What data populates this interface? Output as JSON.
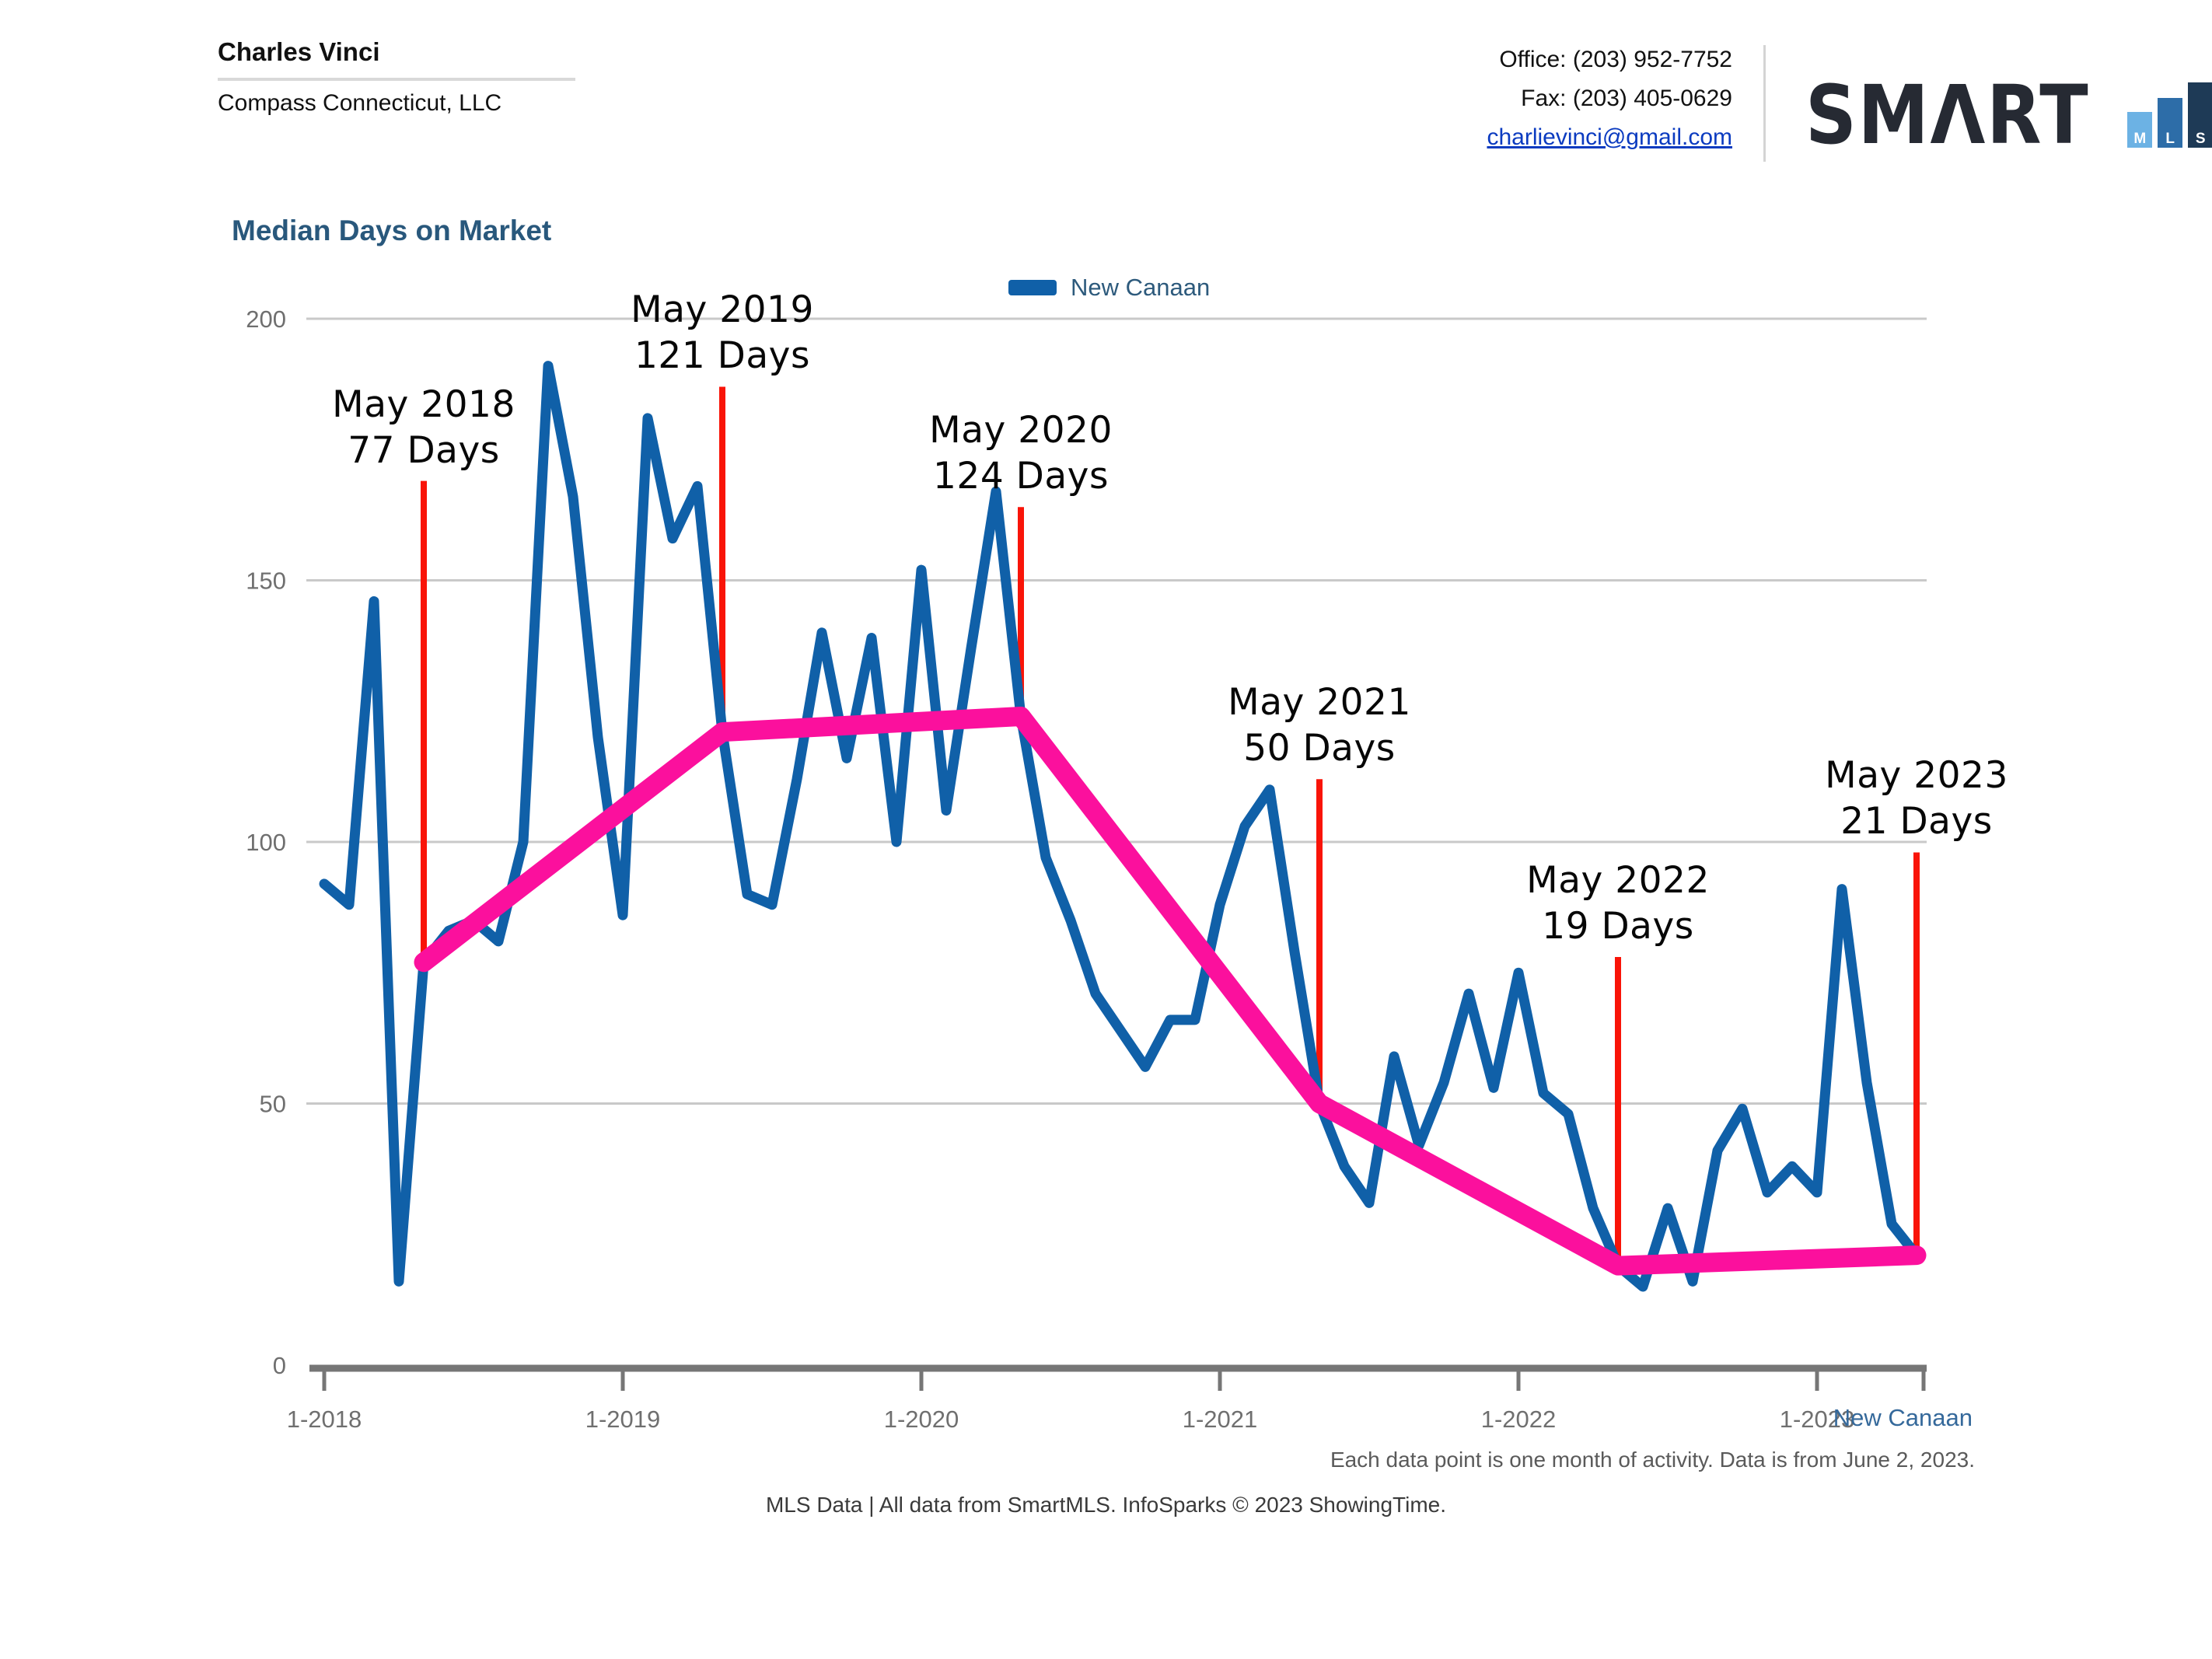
{
  "header": {
    "agent_name": "Charles Vinci",
    "company": "Compass Connecticut, LLC",
    "office_label": "Office: (203) 952-7752",
    "fax_label": "Fax: (203) 405-0629",
    "email": "charlievinci@gmail.com",
    "logo": {
      "text": "SMΛRT",
      "bars": [
        {
          "letter": "M",
          "color": "#6cb2e4",
          "height": 46
        },
        {
          "letter": "L",
          "color": "#2d6da8",
          "height": 64
        },
        {
          "letter": "S",
          "color": "#1e3a56",
          "height": 84
        }
      ]
    }
  },
  "chart": {
    "title": "Median Days on Market",
    "legend": {
      "label": "New Canaan",
      "swatch_color": "#1060a8"
    },
    "series_label_bottom_right": "New Canaan",
    "footnote_right": "Each data point is one month of activity. Data is from June 2, 2023.",
    "footer": "MLS Data | All data from SmartMLS. InfoSparks © 2023 ShowingTime."
  },
  "chart_data": {
    "type": "line",
    "title": "Median Days on Market",
    "x_start_month": "1-2018",
    "x_end_month": "5-2023",
    "x_tick_labels": [
      "1-2018",
      "1-2019",
      "1-2020",
      "1-2021",
      "1-2022",
      "1-2023"
    ],
    "x_tick_month_indices": [
      0,
      12,
      24,
      36,
      48,
      60
    ],
    "y_ticks": [
      0,
      50,
      100,
      150,
      200
    ],
    "ylim": [
      0,
      200
    ],
    "grid": true,
    "legend_position": "top-center",
    "colors": {
      "blue_line": "#1060a8",
      "pink_trend": "#fb109d",
      "red_marker": "#f91408",
      "gridline": "#c9c9c9",
      "axis": "#767676",
      "tick_label": "#6f6f6f"
    },
    "series": [
      {
        "name": "New Canaan (monthly median days on market)",
        "color": "#1060a8",
        "values": [
          92,
          88,
          146,
          16,
          77,
          83,
          85,
          81,
          100,
          191,
          166,
          120,
          86,
          181,
          158,
          168,
          121,
          90,
          88,
          112,
          140,
          116,
          139,
          100,
          152,
          106,
          137,
          167,
          124,
          97,
          85,
          71,
          64,
          57,
          66,
          66,
          88,
          103,
          110,
          79,
          50,
          38,
          31,
          59,
          42,
          54,
          71,
          53,
          75,
          52,
          48,
          30,
          19,
          15,
          30,
          16,
          41,
          49,
          33,
          38,
          33,
          91,
          54,
          27,
          21
        ]
      },
      {
        "name": "May-to-May trend",
        "color": "#fb109d",
        "month_indices": [
          4,
          16,
          28,
          40,
          52,
          64
        ],
        "values": [
          77,
          121,
          124,
          50,
          19,
          21
        ]
      }
    ],
    "annotations": [
      {
        "title": "May 2018",
        "subtitle": "77 Days",
        "month_index": 4,
        "value": 77,
        "line_top_value": 169
      },
      {
        "title": "May 2019",
        "subtitle": "121 Days",
        "month_index": 16,
        "value": 121,
        "line_top_value": 187
      },
      {
        "title": "May 2020",
        "subtitle": "124 Days",
        "month_index": 28,
        "value": 124,
        "line_top_value": 164
      },
      {
        "title": "May 2021",
        "subtitle": "50 Days",
        "month_index": 40,
        "value": 50,
        "line_top_value": 112
      },
      {
        "title": "May 2022",
        "subtitle": "19 Days",
        "month_index": 52,
        "value": 19,
        "line_top_value": 78
      },
      {
        "title": "May 2023",
        "subtitle": "21 Days",
        "month_index": 64,
        "value": 21,
        "line_top_value": 98
      }
    ]
  }
}
